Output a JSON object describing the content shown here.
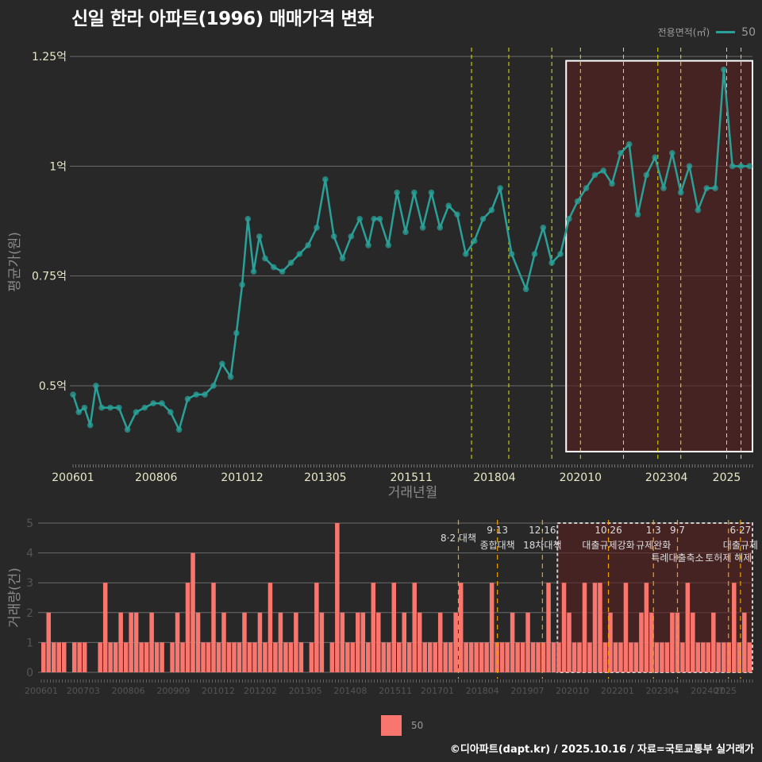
{
  "title": "신일 한라 아파트(1996) 매매가격 변화",
  "legend_top": {
    "label": "전용면적(㎡)",
    "value": "50"
  },
  "legend_bottom": {
    "value": "50"
  },
  "credit": "©디아파트(dapt.kr) / 2025.10.16 / 자료=국토교통부 실거래가",
  "colors": {
    "line": "#2aa198",
    "bar": "#f8766d",
    "highlight": "#5a1f1f",
    "policy_line_top": "#e6e600",
    "policy_line_bottom": "#f0a000",
    "background": "#282828",
    "grid": "#6a6a6a"
  },
  "chart_data": [
    {
      "type": "line",
      "title": "신일 한라 아파트(1996) 매매가격 변화",
      "xlabel": "거래년월",
      "ylabel": "평균가(원)",
      "x_ticks": [
        "200601",
        "200806",
        "201012",
        "201305",
        "201511",
        "201804",
        "202010",
        "202304",
        "2025"
      ],
      "y_ticks": [
        "0.5억",
        "0.75억",
        "1억",
        "1.25억"
      ],
      "y_tick_values": [
        0.5,
        0.75,
        1.0,
        1.25
      ],
      "ylim": [
        0.33,
        1.27
      ],
      "xlim": [
        "200601",
        "202510"
      ],
      "series": [
        {
          "name": "50",
          "x": [
            "200601",
            "200603",
            "200605",
            "200607",
            "200609",
            "200611",
            "200702",
            "200705",
            "200708",
            "200711",
            "200802",
            "200805",
            "200808",
            "200811",
            "200902",
            "200905",
            "200908",
            "200911",
            "201002",
            "201005",
            "201008",
            "201010",
            "201012",
            "201102",
            "201104",
            "201106",
            "201108",
            "201111",
            "201202",
            "201205",
            "201208",
            "201211",
            "201302",
            "201305",
            "201308",
            "201311",
            "201402",
            "201405",
            "201408",
            "201410",
            "201412",
            "201503",
            "201506",
            "201509",
            "201512",
            "201603",
            "201606",
            "201609",
            "201612",
            "201703",
            "201706",
            "201709",
            "201712",
            "201803",
            "201806",
            "201810",
            "201903",
            "201906",
            "201909",
            "201912",
            "202003",
            "202006",
            "202009",
            "202012",
            "202103",
            "202106",
            "202109",
            "202112",
            "202203",
            "202206",
            "202209",
            "202212",
            "202303",
            "202306",
            "202309",
            "202312",
            "202403",
            "202406",
            "202409",
            "202412",
            "202503",
            "202506",
            "202509"
          ],
          "y": [
            0.48,
            0.44,
            0.45,
            0.41,
            0.5,
            0.45,
            0.45,
            0.45,
            0.4,
            0.44,
            0.45,
            0.46,
            0.46,
            0.44,
            0.4,
            0.47,
            0.48,
            0.48,
            0.5,
            0.55,
            0.52,
            0.62,
            0.73,
            0.88,
            0.76,
            0.84,
            0.79,
            0.77,
            0.76,
            0.78,
            0.8,
            0.82,
            0.86,
            0.97,
            0.84,
            0.79,
            0.84,
            0.88,
            0.82,
            0.88,
            0.88,
            0.82,
            0.94,
            0.85,
            0.94,
            0.86,
            0.94,
            0.86,
            0.91,
            0.89,
            0.8,
            0.83,
            0.88,
            0.9,
            0.95,
            0.8,
            0.72,
            0.8,
            0.86,
            0.78,
            0.8,
            0.88,
            0.92,
            0.95,
            0.98,
            0.99,
            0.96,
            1.03,
            1.05,
            0.89,
            0.98,
            1.02,
            0.95,
            1.03,
            0.94,
            1.0,
            0.9,
            0.95,
            0.95,
            1.22,
            1.0,
            1.0,
            1.0
          ]
        }
      ],
      "highlight_box": {
        "from": "202005",
        "to": "202510",
        "y_from": 0.35,
        "y_to": 1.24
      },
      "policy_lines": [
        "201708",
        "201809",
        "201912",
        "202010",
        "202201",
        "202301",
        "202309",
        "202501",
        "202506"
      ]
    },
    {
      "type": "bar",
      "xlabel": "",
      "ylabel": "거래량(건)",
      "x_ticks": [
        "200601",
        "200703",
        "200806",
        "200909",
        "201012",
        "201202",
        "201305",
        "201408",
        "201511",
        "201701",
        "201804",
        "201907",
        "202010",
        "202201",
        "202304",
        "202407",
        "2025"
      ],
      "y_ticks": [
        "0",
        "1",
        "2",
        "3",
        "4",
        "5"
      ],
      "ylim": [
        0,
        5
      ],
      "series": [
        {
          "name": "50",
          "values": [
            1,
            2,
            1,
            1,
            1,
            0,
            1,
            1,
            1,
            0,
            0,
            1,
            3,
            1,
            1,
            2,
            1,
            2,
            2,
            1,
            1,
            2,
            1,
            1,
            0,
            1,
            2,
            1,
            3,
            4,
            2,
            1,
            1,
            3,
            1,
            2,
            1,
            1,
            1,
            2,
            1,
            1,
            2,
            1,
            3,
            1,
            2,
            1,
            1,
            2,
            1,
            0,
            1,
            3,
            2,
            0,
            1,
            5,
            2,
            1,
            1,
            2,
            2,
            1,
            3,
            2,
            1,
            1,
            3,
            1,
            2,
            1,
            3,
            2,
            1,
            1,
            1,
            2,
            1,
            1,
            2,
            3,
            1,
            1,
            1,
            1,
            1,
            3,
            1,
            1,
            1,
            2,
            1,
            1,
            2,
            1,
            1,
            1,
            3,
            1,
            1,
            3,
            2,
            1,
            1,
            3,
            1,
            3,
            3,
            1,
            2,
            1,
            1,
            3,
            1,
            1,
            2,
            3,
            2,
            1,
            1,
            1,
            2,
            2,
            1,
            3,
            2,
            1,
            1,
            1,
            2,
            1,
            1,
            1,
            3,
            1,
            2,
            1
          ]
        }
      ],
      "annotations": [
        {
          "date": "8·2 대책",
          "month": "201708"
        },
        {
          "date": "9·13",
          "text": "종합대책",
          "month": "201809"
        },
        {
          "date": "12·16",
          "text": "18차대책",
          "month": "201912"
        },
        {
          "date": "10·26",
          "text": "대출규제강화",
          "month": "202110"
        },
        {
          "date": "1·3",
          "text": "규제완화",
          "month": "202301"
        },
        {
          "date": "9·7",
          "text": "특례대출축소",
          "month": "202309"
        },
        {
          "date": "",
          "text": "토허제 해제",
          "month": "202502"
        },
        {
          "date": "6·27",
          "text": "대출규제",
          "month": "202506"
        }
      ],
      "highlight_box": {
        "from": "202005",
        "to": "202510"
      }
    }
  ],
  "axis_titles": {
    "top_x": "거래년월",
    "top_y": "평균가(원)",
    "bottom_y": "거래량(건)"
  }
}
